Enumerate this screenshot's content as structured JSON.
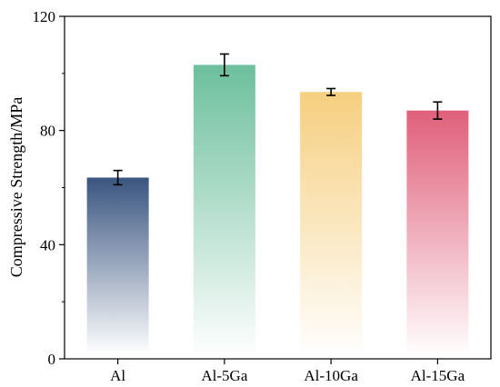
{
  "chart_data": {
    "type": "bar",
    "categories": [
      "Al",
      "Al-5Ga",
      "Al-10Ga",
      "Al-15Ga"
    ],
    "values": [
      63.5,
      103.0,
      93.5,
      87.0
    ],
    "errors": [
      2.5,
      3.8,
      1.2,
      3.0
    ],
    "title": "",
    "xlabel": "",
    "ylabel": "Compressive Strength/MPa",
    "ylim": [
      0,
      120
    ],
    "yticks": [
      0,
      40,
      80,
      120
    ],
    "yminor_step": 20,
    "grid": false,
    "legend": "none",
    "colors": [
      "#3a5580",
      "#6dbf9e",
      "#f6cf80",
      "#e05f7a"
    ],
    "gradient": "solid at top fading to white at bottom"
  }
}
